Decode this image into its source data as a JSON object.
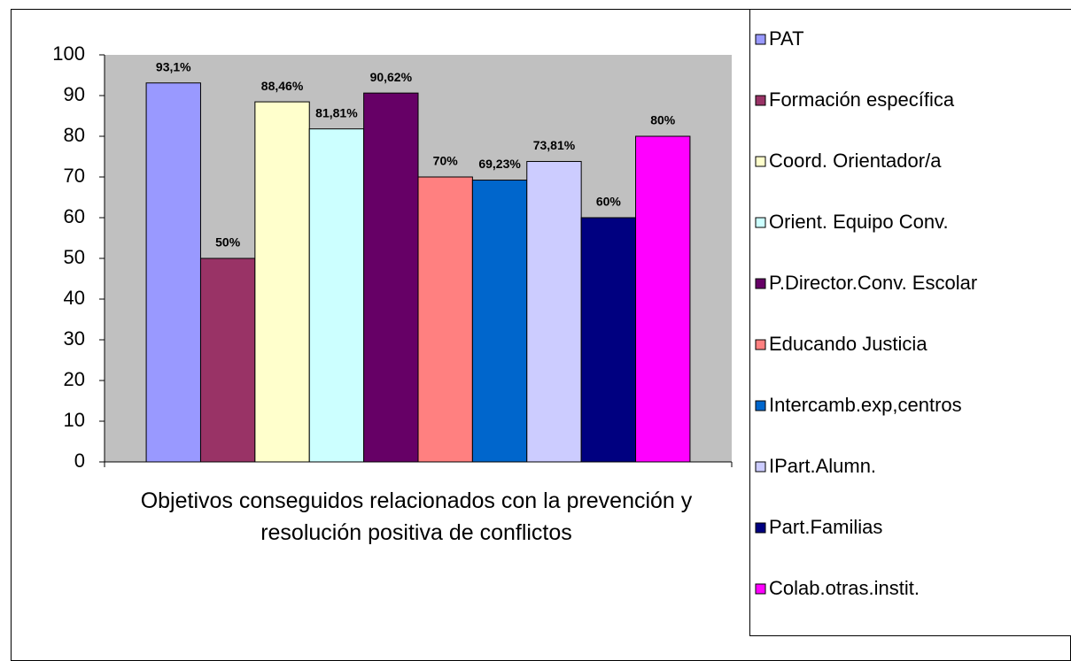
{
  "chart_data": {
    "type": "bar",
    "categories": [
      "Objetivos conseguidos relacionados con la prevención y resolución positiva de conflictos"
    ],
    "series": [
      {
        "name": "PAT",
        "color": "#9999ff",
        "values": [
          93.1
        ],
        "value_labels": [
          "93,1%"
        ]
      },
      {
        "name": "Formación específica",
        "color": "#993366",
        "values": [
          50
        ],
        "value_labels": [
          "50%"
        ]
      },
      {
        "name": "Coord. Orientador/a",
        "color": "#ffffcc",
        "values": [
          88.46
        ],
        "value_labels": [
          "88,46%"
        ]
      },
      {
        "name": "Orient. Equipo Conv.",
        "color": "#ccffff",
        "values": [
          81.81
        ],
        "value_labels": [
          "81,81%"
        ]
      },
      {
        "name": "P.Director.Conv. Escolar",
        "color": "#660066",
        "values": [
          90.62
        ],
        "value_labels": [
          "90,62%"
        ]
      },
      {
        "name": "Educando Justicia",
        "color": "#ff8080",
        "values": [
          70
        ],
        "value_labels": [
          "70%"
        ]
      },
      {
        "name": "Intercamb.exp,centros",
        "color": "#0066cc",
        "values": [
          69.23
        ],
        "value_labels": [
          "69,23%"
        ]
      },
      {
        "name": "IPart.Alumn.",
        "color": "#ccccff",
        "values": [
          73.81
        ],
        "value_labels": [
          "73,81%"
        ]
      },
      {
        "name": "Part.Familias",
        "color": "#000080",
        "values": [
          60
        ],
        "value_labels": [
          "60%"
        ]
      },
      {
        "name": "Colab.otras.instit.",
        "color": "#ff00ff",
        "values": [
          80
        ],
        "value_labels": [
          "80%"
        ]
      }
    ],
    "ylim": [
      0,
      100
    ],
    "yticks": [
      0,
      10,
      20,
      30,
      40,
      50,
      60,
      70,
      80,
      90,
      100
    ],
    "legend": "right"
  }
}
